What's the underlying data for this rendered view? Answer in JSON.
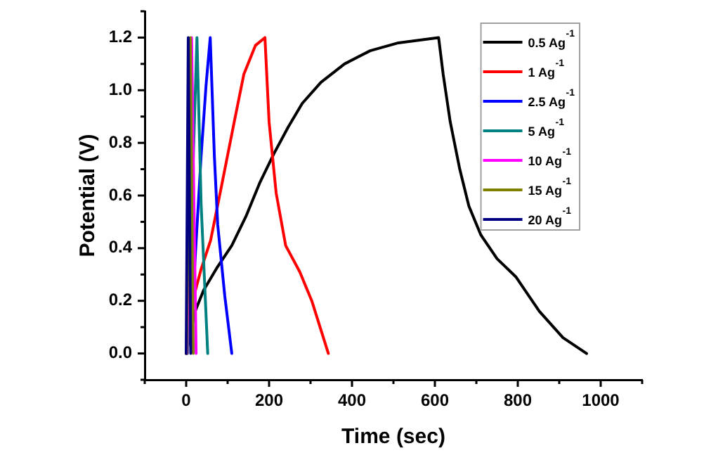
{
  "chart_data": {
    "type": "line",
    "xlabel": "Time (sec)",
    "ylabel": "Potential (V)",
    "xlim": [
      -100,
      1100
    ],
    "ylim": [
      -0.1,
      1.3
    ],
    "xticks": [
      {
        "value": -100,
        "label": null
      },
      0,
      {
        "value": 100,
        "label": null
      },
      200,
      {
        "value": 300,
        "label": null
      },
      400,
      {
        "value": 500,
        "label": null
      },
      600,
      {
        "value": 700,
        "label": null
      },
      800,
      {
        "value": 900,
        "label": null
      },
      1000,
      {
        "value": 1100,
        "label": null
      }
    ],
    "yticks": [
      {
        "value": -0.1,
        "label": null
      },
      {
        "value": 0,
        "label": "0.0"
      },
      {
        "value": 0.1,
        "label": null
      },
      0.2,
      {
        "value": 0.3,
        "label": null
      },
      0.4,
      {
        "value": 0.5,
        "label": null
      },
      0.6,
      {
        "value": 0.7,
        "label": null
      },
      0.8,
      {
        "value": 0.9,
        "label": null
      },
      {
        "value": 1,
        "label": "1.0"
      },
      {
        "value": 1.1,
        "label": null
      },
      1.2,
      {
        "value": 1.3,
        "label": null
      }
    ],
    "legend": "top right",
    "series": [
      {
        "name": "0.5 Ag$^{-1}$",
        "color": "#000000",
        "x": [
          0,
          16,
          19,
          42,
          76,
          110,
          144,
          178,
          212,
          246,
          280,
          325,
          382,
          444,
          512,
          609,
          620,
          637,
          660,
          682,
          711,
          750,
          796,
          852,
          909,
          966
        ],
        "values": [
          0,
          0.12,
          0.15,
          0.24,
          0.33,
          0.41,
          0.52,
          0.65,
          0.76,
          0.86,
          0.95,
          1.03,
          1.1,
          1.15,
          1.18,
          1.2,
          1.06,
          0.88,
          0.7,
          0.56,
          0.45,
          0.36,
          0.29,
          0.16,
          0.06,
          0
        ]
      },
      {
        "name": "1 Ag$^{-1}$",
        "color": "#ff0000",
        "x": [
          0,
          14,
          19,
          36,
          59,
          87,
          116,
          139,
          167,
          190,
          200,
          217,
          240,
          274,
          303,
          325,
          343
        ],
        "values": [
          0,
          0.21,
          0.22,
          0.32,
          0.43,
          0.65,
          0.88,
          1.06,
          1.17,
          1.2,
          0.88,
          0.61,
          0.41,
          0.31,
          0.2,
          0.09,
          0
        ]
      },
      {
        "name": "2.5 Ag$^{-1}$",
        "color": "#0000ff",
        "x": [
          2,
          19,
          36,
          48,
          58,
          68,
          76,
          93,
          110
        ],
        "values": [
          0,
          0.29,
          0.75,
          1.02,
          1.2,
          0.75,
          0.49,
          0.22,
          0
        ]
      },
      {
        "name": "5 Ag$^{-1}$",
        "color": "#008080",
        "x": [
          3,
          26,
          36,
          52
        ],
        "values": [
          0,
          1.2,
          0.57,
          0
        ]
      },
      {
        "name": "10 Ag$^{-1}$",
        "color": "#ff00ff",
        "x": [
          2,
          13,
          24
        ],
        "values": [
          0,
          1.2,
          0
        ]
      },
      {
        "name": "15 Ag$^{-1}$",
        "color": "#808000",
        "x": [
          1,
          10,
          17
        ],
        "values": [
          0,
          1.2,
          0
        ]
      },
      {
        "name": "20 Ag$^{-1}$",
        "color": "#000080",
        "x": [
          0,
          5,
          11
        ],
        "values": [
          0,
          1.2,
          0
        ]
      }
    ]
  }
}
